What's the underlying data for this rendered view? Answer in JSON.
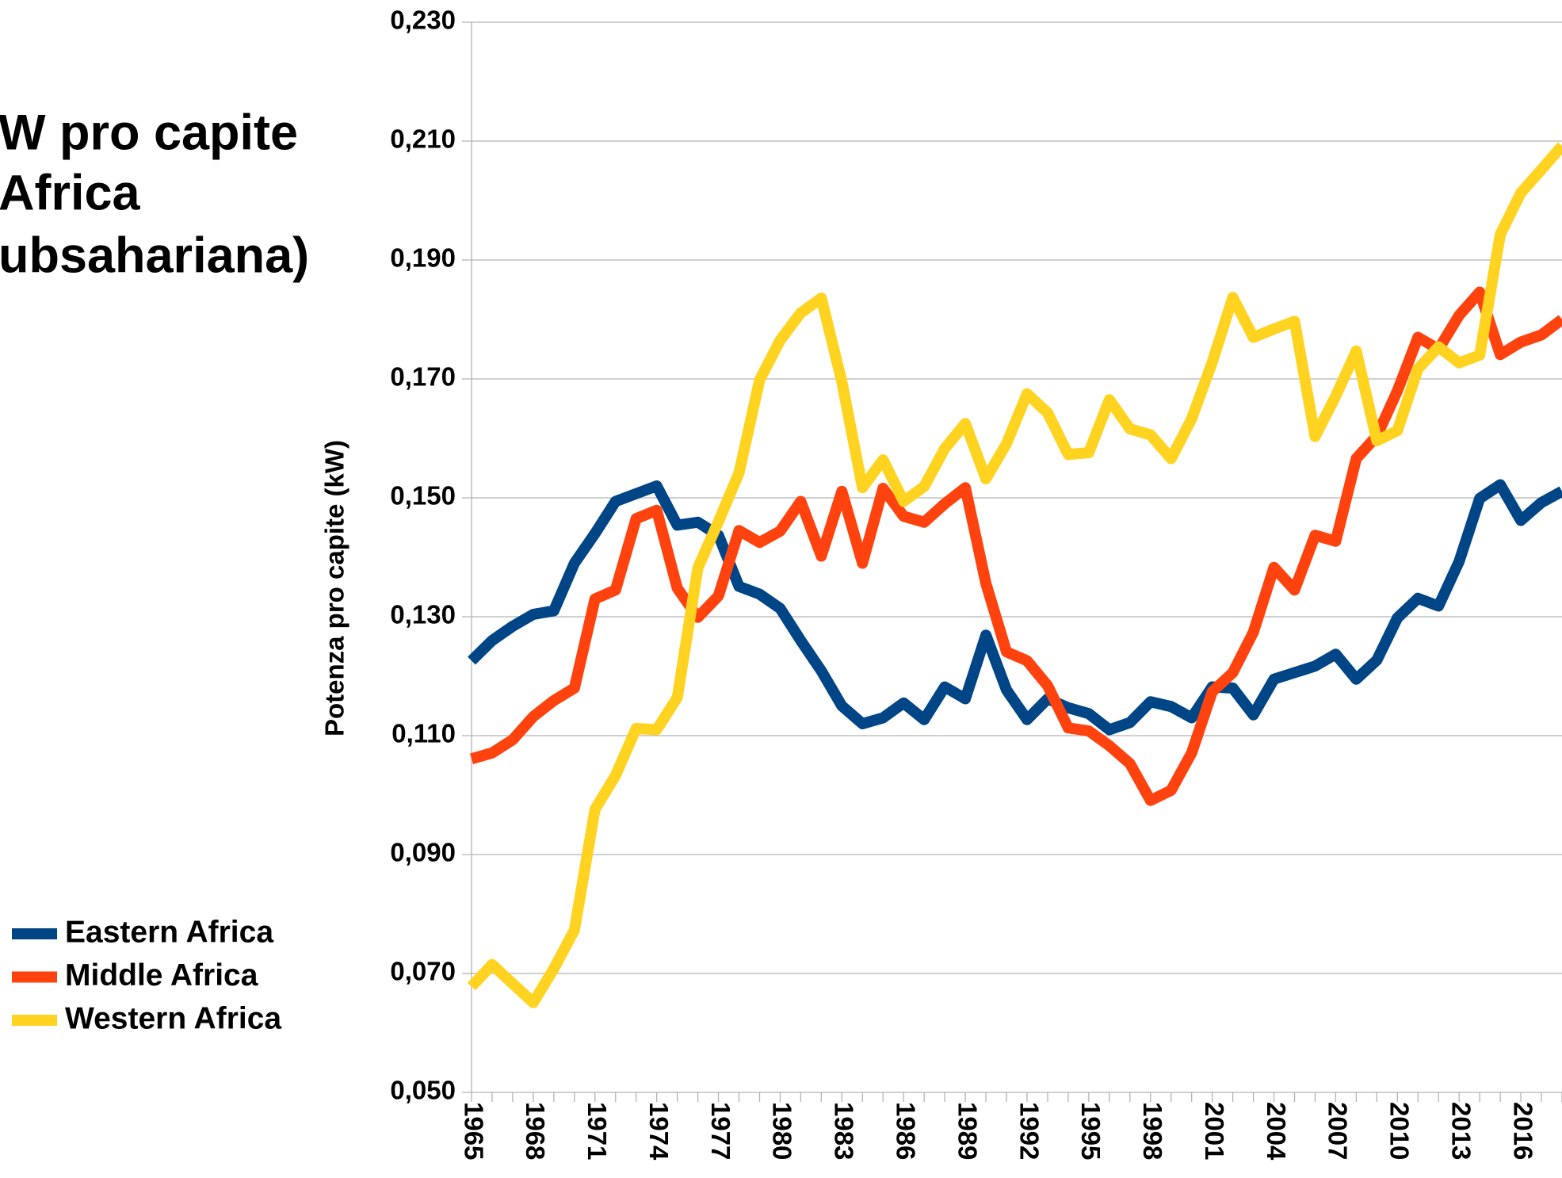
{
  "chart_data": {
    "type": "line",
    "title": [
      "W pro capite",
      "Africa",
      "ubsahariana)"
    ],
    "y_label": "Potenza pro capite (kW)",
    "categories": [
      "1965",
      null,
      null,
      "1968",
      null,
      null,
      "1971",
      null,
      null,
      "1974",
      null,
      null,
      "1977",
      null,
      null,
      "1980",
      null,
      null,
      "1983",
      null,
      null,
      "1986",
      null,
      null,
      "1989",
      null,
      null,
      "1992",
      null,
      null,
      "1995",
      null,
      null,
      "1998",
      null,
      null,
      "2001",
      null,
      null,
      "2004",
      null,
      null,
      "2007",
      null,
      null,
      "2010",
      null,
      null,
      "2013",
      null,
      null,
      "2016",
      null,
      null
    ],
    "series": [
      {
        "name": "Eastern Africa",
        "color": "#004586",
        "values": [
          0.1226,
          0.126,
          0.1284,
          0.1304,
          0.131,
          0.139,
          0.144,
          0.1494,
          0.1507,
          0.152,
          0.1454,
          0.1459,
          0.1437,
          0.1351,
          0.1338,
          0.1314,
          0.126,
          0.1209,
          0.115,
          0.112,
          0.113,
          0.1155,
          0.1127,
          0.1182,
          0.1162,
          0.1269,
          0.1177,
          0.1127,
          0.1162,
          0.1147,
          0.1137,
          0.111,
          0.1122,
          0.1157,
          0.1149,
          0.113,
          0.1182,
          0.118,
          0.1135,
          0.1195,
          0.1206,
          0.1217,
          0.1237,
          0.1195,
          0.1227,
          0.1298,
          0.1331,
          0.1318,
          0.1393,
          0.1499,
          0.1522,
          0.1462,
          0.1492,
          0.1511
        ]
      },
      {
        "name": "Middle Africa",
        "color": "#ff420e",
        "values": [
          0.1061,
          0.1071,
          0.1093,
          0.1132,
          0.1159,
          0.118,
          0.133,
          0.1345,
          0.1465,
          0.1479,
          0.1348,
          0.1299,
          0.1335,
          0.1445,
          0.1425,
          0.1444,
          0.1494,
          0.1402,
          0.1511,
          0.139,
          0.1516,
          0.1469,
          0.1459,
          0.149,
          0.1517,
          0.1356,
          0.1241,
          0.1226,
          0.1184,
          0.1113,
          0.1108,
          0.1083,
          0.1053,
          0.0991,
          0.1008,
          0.1071,
          0.1174,
          0.1206,
          0.1274,
          0.1383,
          0.1345,
          0.1437,
          0.1427,
          0.1566,
          0.1604,
          0.168,
          0.177,
          0.175,
          0.1807,
          0.1846,
          0.1741,
          0.1762,
          0.1774,
          0.18
        ]
      },
      {
        "name": "Western Africa",
        "color": "#ffd320",
        "values": [
          0.0678,
          0.0715,
          0.0683,
          0.0651,
          0.0708,
          0.0773,
          0.0976,
          0.1033,
          0.1112,
          0.111,
          0.1164,
          0.1382,
          0.146,
          0.1542,
          0.1698,
          0.1765,
          0.1811,
          0.1836,
          0.1695,
          0.1517,
          0.1564,
          0.1494,
          0.1519,
          0.1583,
          0.1625,
          0.1532,
          0.1591,
          0.1675,
          0.1643,
          0.1573,
          0.1576,
          0.1665,
          0.1616,
          0.1606,
          0.1566,
          0.1633,
          0.1728,
          0.1837,
          0.177,
          0.1784,
          0.1797,
          0.1603,
          0.1671,
          0.1747,
          0.1596,
          0.1613,
          0.1717,
          0.1754,
          0.1727,
          0.174,
          0.1943,
          0.2013,
          0.2052,
          0.2092
        ]
      }
    ],
    "ylim": [
      0.05,
      0.23
    ],
    "yticks": [
      {
        "value": 0.05,
        "label": "0,050"
      },
      {
        "value": 0.07,
        "label": "0,070"
      },
      {
        "value": 0.09,
        "label": "0,090"
      },
      {
        "value": 0.11,
        "label": "0,110"
      },
      {
        "value": 0.13,
        "label": "0,130"
      },
      {
        "value": 0.15,
        "label": "0,150"
      },
      {
        "value": 0.17,
        "label": "0,170"
      },
      {
        "value": 0.19,
        "label": "0,190"
      },
      {
        "value": 0.21,
        "label": "0,210"
      },
      {
        "value": 0.23,
        "label": "0,230"
      }
    ],
    "grid": true
  }
}
